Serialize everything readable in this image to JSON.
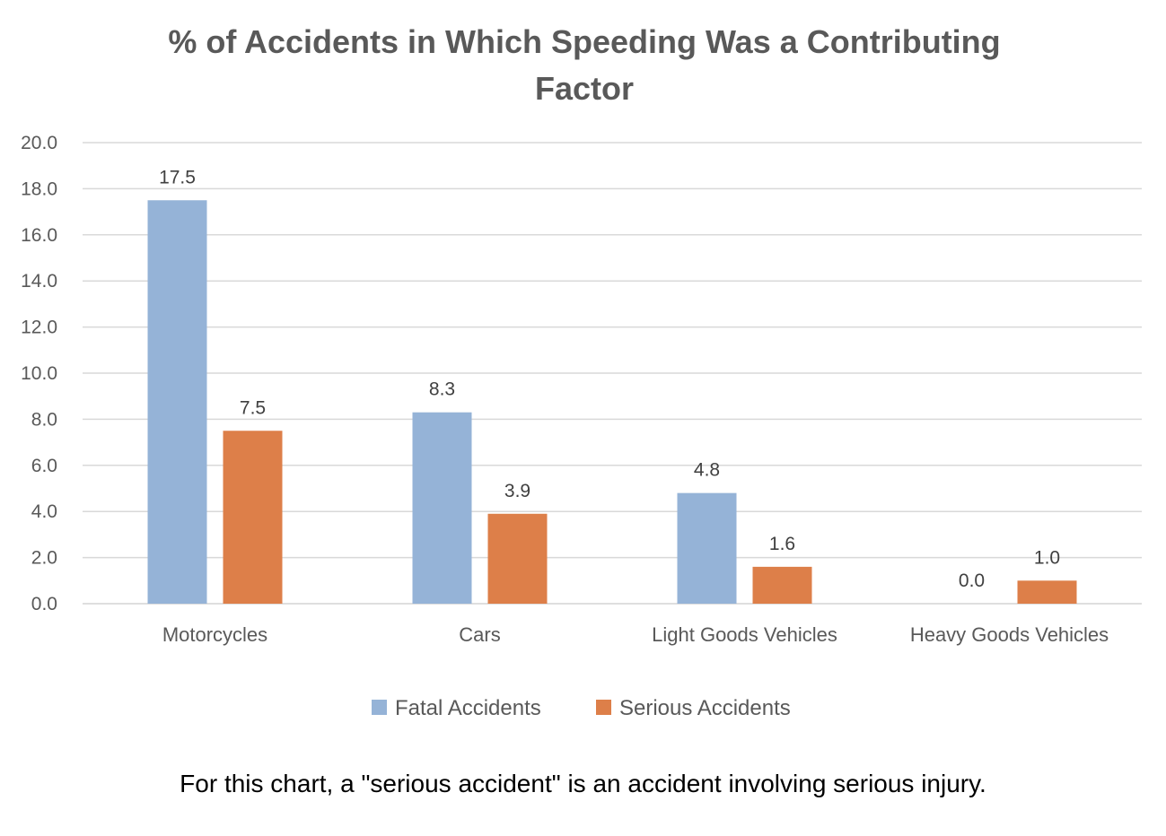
{
  "chart_data": {
    "type": "bar",
    "title_lines": [
      "% of Accidents in Which Speeding Was a Contributing",
      "Factor"
    ],
    "categories": [
      "Motorcycles",
      "Cars",
      "Light Goods Vehicles",
      "Heavy Goods Vehicles"
    ],
    "series": [
      {
        "name": "Fatal Accidents",
        "color": "#95b3d7",
        "values": [
          17.5,
          8.3,
          4.8,
          0.0
        ]
      },
      {
        "name": "Serious Accidents",
        "color": "#dd7f49",
        "values": [
          7.5,
          3.9,
          1.6,
          1.0
        ]
      }
    ],
    "ylim": [
      0,
      20
    ],
    "yticks": [
      "0.0",
      "2.0",
      "4.0",
      "6.0",
      "8.0",
      "10.0",
      "12.0",
      "14.0",
      "16.0",
      "18.0",
      "20.0"
    ],
    "grid": true,
    "legend": "bottom-center",
    "xlabel": "",
    "ylabel": ""
  },
  "footnote": "For this chart, a \"serious accident\" is an accident involving serious injury."
}
